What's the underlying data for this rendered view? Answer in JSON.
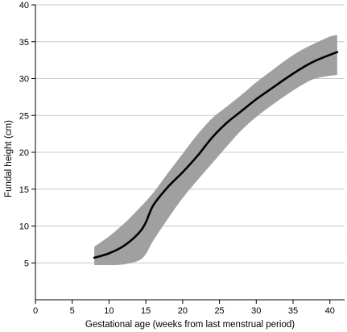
{
  "chart_data": {
    "type": "line",
    "title": "",
    "xlabel": "Gestational age (weeks from last menstrual period)",
    "ylabel": "Fundal height (cm)",
    "xlim": [
      0,
      42
    ],
    "ylim": [
      0,
      40
    ],
    "xticks": [
      0,
      5,
      10,
      15,
      20,
      25,
      30,
      35,
      40
    ],
    "yticks": [
      5,
      10,
      15,
      20,
      25,
      30,
      35,
      40
    ],
    "grid": "horizontal",
    "legend": "none",
    "colors": {
      "line": "#000000",
      "band": "#a0a0a0",
      "grid": "#c8c8c8",
      "axis": "#000000"
    },
    "series": [
      {
        "values": [
          {
            "x": 8,
            "y": 5.7
          },
          {
            "x": 10,
            "y": 6.3
          },
          {
            "x": 12,
            "y": 7.3
          },
          {
            "x": 14,
            "y": 9.0
          },
          {
            "x": 15,
            "y": 10.5
          },
          {
            "x": 16,
            "y": 12.8
          },
          {
            "x": 18,
            "y": 15.3
          },
          {
            "x": 20,
            "y": 17.3
          },
          {
            "x": 22,
            "y": 19.5
          },
          {
            "x": 24,
            "y": 22.0
          },
          {
            "x": 26,
            "y": 24.0
          },
          {
            "x": 28,
            "y": 25.6
          },
          {
            "x": 30,
            "y": 27.2
          },
          {
            "x": 32,
            "y": 28.6
          },
          {
            "x": 34,
            "y": 30.0
          },
          {
            "x": 36,
            "y": 31.3
          },
          {
            "x": 38,
            "y": 32.4
          },
          {
            "x": 41,
            "y": 33.6
          }
        ]
      }
    ],
    "band": {
      "upper": [
        {
          "x": 8,
          "y": 7.2
        },
        {
          "x": 10,
          "y": 8.6
        },
        {
          "x": 12,
          "y": 10.3
        },
        {
          "x": 14,
          "y": 12.3
        },
        {
          "x": 16,
          "y": 14.5
        },
        {
          "x": 18,
          "y": 17.2
        },
        {
          "x": 20,
          "y": 19.8
        },
        {
          "x": 22,
          "y": 22.4
        },
        {
          "x": 24,
          "y": 24.6
        },
        {
          "x": 26,
          "y": 26.2
        },
        {
          "x": 28,
          "y": 27.8
        },
        {
          "x": 30,
          "y": 29.5
        },
        {
          "x": 32,
          "y": 31.0
        },
        {
          "x": 34,
          "y": 32.5
        },
        {
          "x": 36,
          "y": 33.8
        },
        {
          "x": 38,
          "y": 34.8
        },
        {
          "x": 40,
          "y": 35.7
        },
        {
          "x": 41,
          "y": 35.9
        }
      ],
      "lower": [
        {
          "x": 8,
          "y": 4.7
        },
        {
          "x": 10,
          "y": 4.7
        },
        {
          "x": 12,
          "y": 4.8
        },
        {
          "x": 14,
          "y": 5.3
        },
        {
          "x": 15,
          "y": 6.2
        },
        {
          "x": 16,
          "y": 8.0
        },
        {
          "x": 18,
          "y": 11.0
        },
        {
          "x": 20,
          "y": 13.8
        },
        {
          "x": 22,
          "y": 16.2
        },
        {
          "x": 24,
          "y": 18.5
        },
        {
          "x": 26,
          "y": 20.8
        },
        {
          "x": 28,
          "y": 23.0
        },
        {
          "x": 30,
          "y": 24.8
        },
        {
          "x": 32,
          "y": 26.3
        },
        {
          "x": 34,
          "y": 27.7
        },
        {
          "x": 36,
          "y": 29.0
        },
        {
          "x": 38,
          "y": 30.0
        },
        {
          "x": 41,
          "y": 30.5
        }
      ]
    }
  }
}
